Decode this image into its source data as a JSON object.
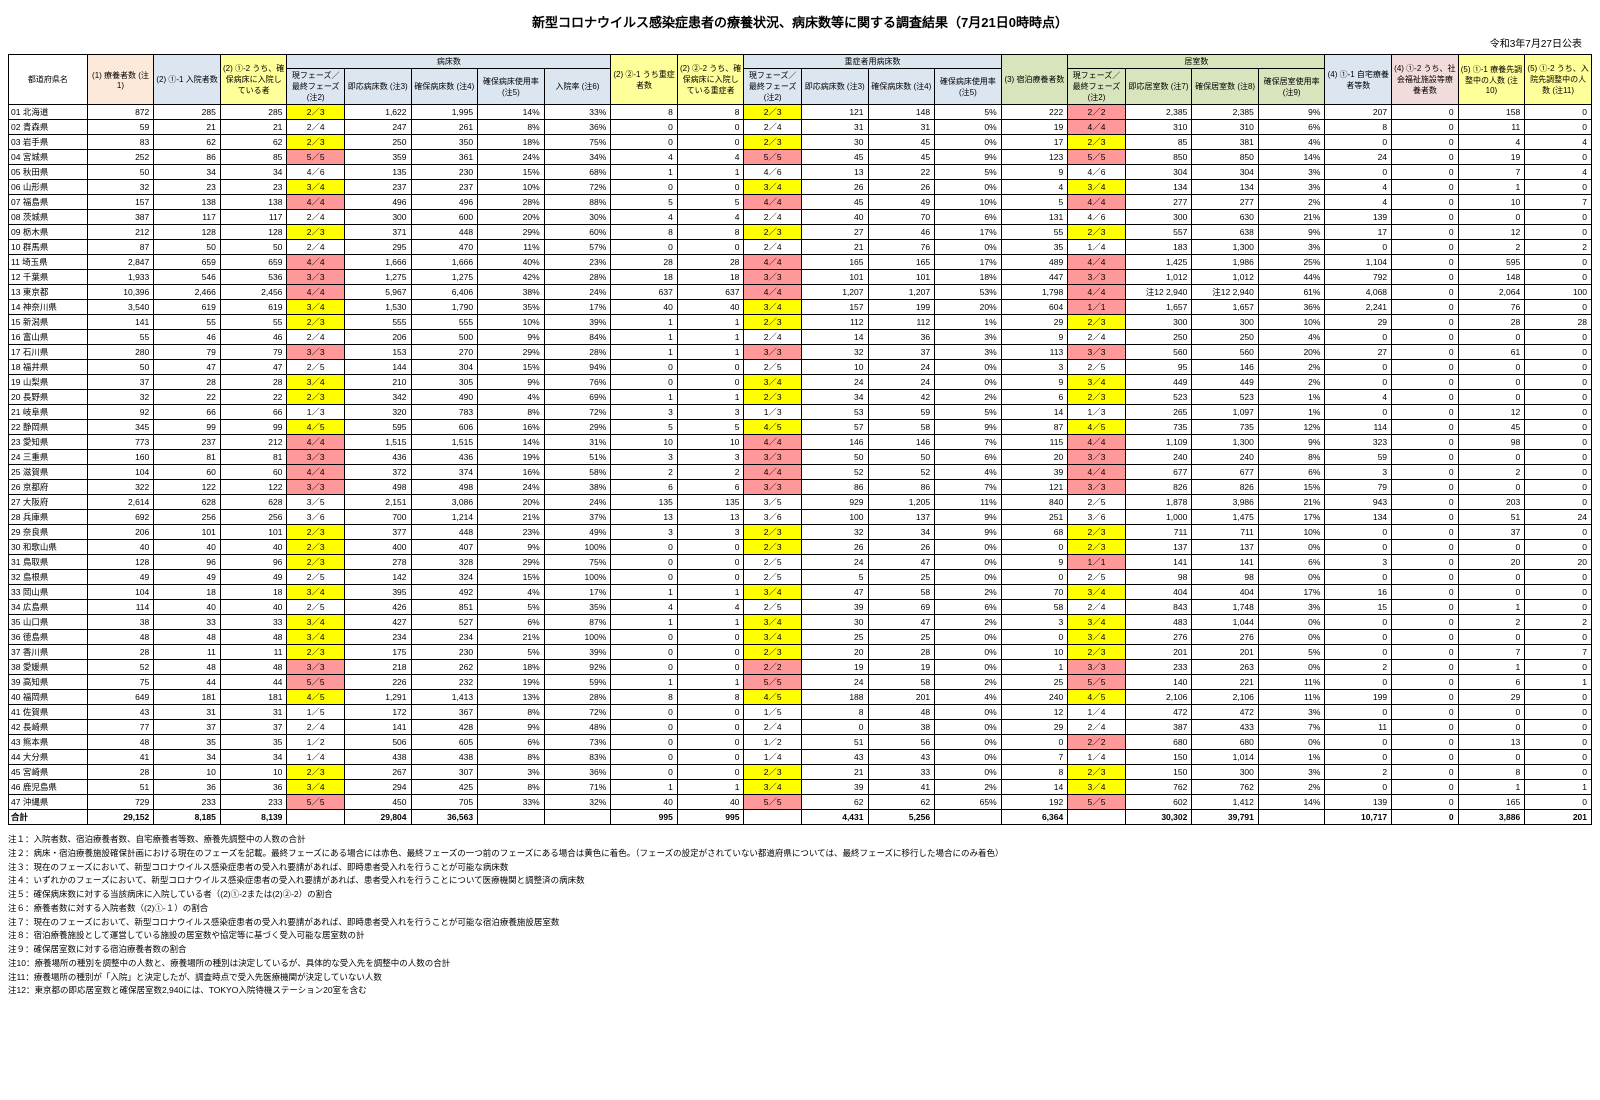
{
  "title": "新型コロナウイルス感染症患者の療養状況、病床数等に関する調査結果（7月21日0時時点）",
  "publish_date": "令和3年7月27日公表",
  "headers": {
    "pref": "都道府県名",
    "g1": "(1) 療養者数 (注1)",
    "g2_1": "(2) ①-1 入院者数",
    "g2_2": "(2) ①-2 うち、確保病床に入院している者",
    "beds_group": "病床数",
    "phase": "現フェーズ／最終フェーズ (注2)",
    "beds_imm": "即応病床数 (注3)",
    "beds_sec": "確保病床数 (注4)",
    "beds_rate": "確保病床使用率 (注5)",
    "adm_rate": "入院率 (注6)",
    "g2_2_1": "(2) ②-1 うち重症者数",
    "g2_2_2": "(2) ②-2 うち、確保病床に入院している重症者",
    "sev_group": "重症者用病床数",
    "sev_imm": "即応病床数 (注3)",
    "sev_sec": "確保病床数 (注4)",
    "sev_rate": "確保病床使用率 (注5)",
    "g3": "(3) 宿泊療養者数",
    "rooms_group": "居室数",
    "rooms_imm": "即応居室数 (注7)",
    "rooms_sec": "確保居室数 (注8)",
    "rooms_rate": "確保居室使用率 (注9)",
    "g4_1": "(4) ①-1 自宅療養者等数",
    "g4_2": "(4) ①-2 うち、社会福祉施設等療養者数",
    "g5_1": "(5) ①-1 療養先調整中の人数 (注10)",
    "g5_2": "(5) ①-2 うち、入院先調整中の人数 (注11)",
    "total": "合計"
  },
  "phase_colors": {
    "yellow": "#ffff00",
    "red": "#ff9999"
  },
  "rows": [
    [
      "01 北海道",
      "872",
      "285",
      "285",
      "2／3",
      "y",
      "1,622",
      "1,995",
      "14%",
      "33%",
      "8",
      "8",
      "2／3",
      "y",
      "121",
      "148",
      "5%",
      "222",
      "2／2",
      "r",
      "2,385",
      "2,385",
      "9%",
      "207",
      "0",
      "158",
      "0"
    ],
    [
      "02 青森県",
      "59",
      "21",
      "21",
      "2／4",
      "",
      "247",
      "261",
      "8%",
      "36%",
      "0",
      "0",
      "2／4",
      "",
      "31",
      "31",
      "0%",
      "19",
      "4／4",
      "r",
      "310",
      "310",
      "6%",
      "8",
      "0",
      "11",
      "0"
    ],
    [
      "03 岩手県",
      "83",
      "62",
      "62",
      "2／3",
      "y",
      "250",
      "350",
      "18%",
      "75%",
      "0",
      "0",
      "2／3",
      "y",
      "30",
      "45",
      "0%",
      "17",
      "2／3",
      "y",
      "85",
      "381",
      "4%",
      "0",
      "0",
      "4",
      "4"
    ],
    [
      "04 宮城県",
      "252",
      "86",
      "85",
      "5／5",
      "r",
      "359",
      "361",
      "24%",
      "34%",
      "4",
      "4",
      "5／5",
      "r",
      "45",
      "45",
      "9%",
      "123",
      "5／5",
      "r",
      "850",
      "850",
      "14%",
      "24",
      "0",
      "19",
      "0"
    ],
    [
      "05 秋田県",
      "50",
      "34",
      "34",
      "4／6",
      "",
      "135",
      "230",
      "15%",
      "68%",
      "1",
      "1",
      "4／6",
      "",
      "13",
      "22",
      "5%",
      "9",
      "4／6",
      "",
      "304",
      "304",
      "3%",
      "0",
      "0",
      "7",
      "4"
    ],
    [
      "06 山形県",
      "32",
      "23",
      "23",
      "3／4",
      "y",
      "237",
      "237",
      "10%",
      "72%",
      "0",
      "0",
      "3／4",
      "y",
      "26",
      "26",
      "0%",
      "4",
      "3／4",
      "y",
      "134",
      "134",
      "3%",
      "4",
      "0",
      "1",
      "0"
    ],
    [
      "07 福島県",
      "157",
      "138",
      "138",
      "4／4",
      "r",
      "496",
      "496",
      "28%",
      "88%",
      "5",
      "5",
      "4／4",
      "r",
      "45",
      "49",
      "10%",
      "5",
      "4／4",
      "r",
      "277",
      "277",
      "2%",
      "4",
      "0",
      "10",
      "7"
    ],
    [
      "08 茨城県",
      "387",
      "117",
      "117",
      "2／4",
      "",
      "300",
      "600",
      "20%",
      "30%",
      "4",
      "4",
      "2／4",
      "",
      "40",
      "70",
      "6%",
      "131",
      "4／6",
      "",
      "300",
      "630",
      "21%",
      "139",
      "0",
      "0",
      "0"
    ],
    [
      "09 栃木県",
      "212",
      "128",
      "128",
      "2／3",
      "y",
      "371",
      "448",
      "29%",
      "60%",
      "8",
      "8",
      "2／3",
      "y",
      "27",
      "46",
      "17%",
      "55",
      "2／3",
      "y",
      "557",
      "638",
      "9%",
      "17",
      "0",
      "12",
      "0"
    ],
    [
      "10 群馬県",
      "87",
      "50",
      "50",
      "2／4",
      "",
      "295",
      "470",
      "11%",
      "57%",
      "0",
      "0",
      "2／4",
      "",
      "21",
      "76",
      "0%",
      "35",
      "1／4",
      "",
      "183",
      "1,300",
      "3%",
      "0",
      "0",
      "2",
      "2"
    ],
    [
      "11 埼玉県",
      "2,847",
      "659",
      "659",
      "4／4",
      "r",
      "1,666",
      "1,666",
      "40%",
      "23%",
      "28",
      "28",
      "4／4",
      "r",
      "165",
      "165",
      "17%",
      "489",
      "4／4",
      "r",
      "1,425",
      "1,986",
      "25%",
      "1,104",
      "0",
      "595",
      "0"
    ],
    [
      "12 千葉県",
      "1,933",
      "546",
      "536",
      "3／3",
      "r",
      "1,275",
      "1,275",
      "42%",
      "28%",
      "18",
      "18",
      "3／3",
      "r",
      "101",
      "101",
      "18%",
      "447",
      "3／3",
      "r",
      "1,012",
      "1,012",
      "44%",
      "792",
      "0",
      "148",
      "0"
    ],
    [
      "13 東京都",
      "10,396",
      "2,466",
      "2,456",
      "4／4",
      "r",
      "5,967",
      "6,406",
      "38%",
      "24%",
      "637",
      "637",
      "4／4",
      "r",
      "1,207",
      "1,207",
      "53%",
      "1,798",
      "4／4",
      "r",
      "注12 2,940",
      "注12 2,940",
      "61%",
      "4,068",
      "0",
      "2,064",
      "100"
    ],
    [
      "14 神奈川県",
      "3,540",
      "619",
      "619",
      "3／4",
      "y",
      "1,530",
      "1,790",
      "35%",
      "17%",
      "40",
      "40",
      "3／4",
      "y",
      "157",
      "199",
      "20%",
      "604",
      "1／1",
      "r",
      "1,657",
      "1,657",
      "36%",
      "2,241",
      "0",
      "76",
      "0"
    ],
    [
      "15 新潟県",
      "141",
      "55",
      "55",
      "2／3",
      "y",
      "555",
      "555",
      "10%",
      "39%",
      "1",
      "1",
      "2／3",
      "y",
      "112",
      "112",
      "1%",
      "29",
      "2／3",
      "y",
      "300",
      "300",
      "10%",
      "29",
      "0",
      "28",
      "28"
    ],
    [
      "16 富山県",
      "55",
      "46",
      "46",
      "2／4",
      "",
      "206",
      "500",
      "9%",
      "84%",
      "1",
      "1",
      "2／4",
      "",
      "14",
      "36",
      "3%",
      "9",
      "2／4",
      "",
      "250",
      "250",
      "4%",
      "0",
      "0",
      "0",
      "0"
    ],
    [
      "17 石川県",
      "280",
      "79",
      "79",
      "3／3",
      "r",
      "153",
      "270",
      "29%",
      "28%",
      "1",
      "1",
      "3／3",
      "r",
      "32",
      "37",
      "3%",
      "113",
      "3／3",
      "r",
      "560",
      "560",
      "20%",
      "27",
      "0",
      "61",
      "0"
    ],
    [
      "18 福井県",
      "50",
      "47",
      "47",
      "2／5",
      "",
      "144",
      "304",
      "15%",
      "94%",
      "0",
      "0",
      "2／5",
      "",
      "10",
      "24",
      "0%",
      "3",
      "2／5",
      "",
      "95",
      "146",
      "2%",
      "0",
      "0",
      "0",
      "0"
    ],
    [
      "19 山梨県",
      "37",
      "28",
      "28",
      "3／4",
      "y",
      "210",
      "305",
      "9%",
      "76%",
      "0",
      "0",
      "3／4",
      "y",
      "24",
      "24",
      "0%",
      "9",
      "3／4",
      "y",
      "449",
      "449",
      "2%",
      "0",
      "0",
      "0",
      "0"
    ],
    [
      "20 長野県",
      "32",
      "22",
      "22",
      "2／3",
      "y",
      "342",
      "490",
      "4%",
      "69%",
      "1",
      "1",
      "2／3",
      "y",
      "34",
      "42",
      "2%",
      "6",
      "2／3",
      "y",
      "523",
      "523",
      "1%",
      "4",
      "0",
      "0",
      "0"
    ],
    [
      "21 岐阜県",
      "92",
      "66",
      "66",
      "1／3",
      "",
      "320",
      "783",
      "8%",
      "72%",
      "3",
      "3",
      "1／3",
      "",
      "53",
      "59",
      "5%",
      "14",
      "1／3",
      "",
      "265",
      "1,097",
      "1%",
      "0",
      "0",
      "12",
      "0"
    ],
    [
      "22 静岡県",
      "345",
      "99",
      "99",
      "4／5",
      "y",
      "595",
      "606",
      "16%",
      "29%",
      "5",
      "5",
      "4／5",
      "y",
      "57",
      "58",
      "9%",
      "87",
      "4／5",
      "y",
      "735",
      "735",
      "12%",
      "114",
      "0",
      "45",
      "0"
    ],
    [
      "23 愛知県",
      "773",
      "237",
      "212",
      "4／4",
      "r",
      "1,515",
      "1,515",
      "14%",
      "31%",
      "10",
      "10",
      "4／4",
      "r",
      "146",
      "146",
      "7%",
      "115",
      "4／4",
      "r",
      "1,109",
      "1,300",
      "9%",
      "323",
      "0",
      "98",
      "0"
    ],
    [
      "24 三重県",
      "160",
      "81",
      "81",
      "3／3",
      "r",
      "436",
      "436",
      "19%",
      "51%",
      "3",
      "3",
      "3／3",
      "r",
      "50",
      "50",
      "6%",
      "20",
      "3／3",
      "r",
      "240",
      "240",
      "8%",
      "59",
      "0",
      "0",
      "0"
    ],
    [
      "25 滋賀県",
      "104",
      "60",
      "60",
      "4／4",
      "r",
      "372",
      "374",
      "16%",
      "58%",
      "2",
      "2",
      "4／4",
      "r",
      "52",
      "52",
      "4%",
      "39",
      "4／4",
      "r",
      "677",
      "677",
      "6%",
      "3",
      "0",
      "2",
      "0"
    ],
    [
      "26 京都府",
      "322",
      "122",
      "122",
      "3／3",
      "r",
      "498",
      "498",
      "24%",
      "38%",
      "6",
      "6",
      "3／3",
      "r",
      "86",
      "86",
      "7%",
      "121",
      "3／3",
      "r",
      "826",
      "826",
      "15%",
      "79",
      "0",
      "0",
      "0"
    ],
    [
      "27 大阪府",
      "2,614",
      "628",
      "628",
      "3／5",
      "",
      "2,151",
      "3,086",
      "20%",
      "24%",
      "135",
      "135",
      "3／5",
      "",
      "929",
      "1,205",
      "11%",
      "840",
      "2／5",
      "",
      "1,878",
      "3,986",
      "21%",
      "943",
      "0",
      "203",
      "0"
    ],
    [
      "28 兵庫県",
      "692",
      "256",
      "256",
      "3／6",
      "",
      "700",
      "1,214",
      "21%",
      "37%",
      "13",
      "13",
      "3／6",
      "",
      "100",
      "137",
      "9%",
      "251",
      "3／6",
      "",
      "1,000",
      "1,475",
      "17%",
      "134",
      "0",
      "51",
      "24"
    ],
    [
      "29 奈良県",
      "206",
      "101",
      "101",
      "2／3",
      "y",
      "377",
      "448",
      "23%",
      "49%",
      "3",
      "3",
      "2／3",
      "y",
      "32",
      "34",
      "9%",
      "68",
      "2／3",
      "y",
      "711",
      "711",
      "10%",
      "0",
      "0",
      "37",
      "0"
    ],
    [
      "30 和歌山県",
      "40",
      "40",
      "40",
      "2／3",
      "y",
      "400",
      "407",
      "9%",
      "100%",
      "0",
      "0",
      "2／3",
      "y",
      "26",
      "26",
      "0%",
      "0",
      "2／3",
      "y",
      "137",
      "137",
      "0%",
      "0",
      "0",
      "0",
      "0"
    ],
    [
      "31 鳥取県",
      "128",
      "96",
      "96",
      "2／3",
      "y",
      "278",
      "328",
      "29%",
      "75%",
      "0",
      "0",
      "2／5",
      "",
      "24",
      "47",
      "0%",
      "9",
      "1／1",
      "r",
      "141",
      "141",
      "6%",
      "3",
      "0",
      "20",
      "20"
    ],
    [
      "32 島根県",
      "49",
      "49",
      "49",
      "2／5",
      "",
      "142",
      "324",
      "15%",
      "100%",
      "0",
      "0",
      "2／5",
      "",
      "5",
      "25",
      "0%",
      "0",
      "2／5",
      "",
      "98",
      "98",
      "0%",
      "0",
      "0",
      "0",
      "0"
    ],
    [
      "33 岡山県",
      "104",
      "18",
      "18",
      "3／4",
      "y",
      "395",
      "492",
      "4%",
      "17%",
      "1",
      "1",
      "3／4",
      "y",
      "47",
      "58",
      "2%",
      "70",
      "3／4",
      "y",
      "404",
      "404",
      "17%",
      "16",
      "0",
      "0",
      "0"
    ],
    [
      "34 広島県",
      "114",
      "40",
      "40",
      "2／5",
      "",
      "426",
      "851",
      "5%",
      "35%",
      "4",
      "4",
      "2／5",
      "",
      "39",
      "69",
      "6%",
      "58",
      "2／4",
      "",
      "843",
      "1,748",
      "3%",
      "15",
      "0",
      "1",
      "0"
    ],
    [
      "35 山口県",
      "38",
      "33",
      "33",
      "3／4",
      "y",
      "427",
      "527",
      "6%",
      "87%",
      "1",
      "1",
      "3／4",
      "y",
      "30",
      "47",
      "2%",
      "3",
      "3／4",
      "y",
      "483",
      "1,044",
      "0%",
      "0",
      "0",
      "2",
      "2"
    ],
    [
      "36 徳島県",
      "48",
      "48",
      "48",
      "3／4",
      "y",
      "234",
      "234",
      "21%",
      "100%",
      "0",
      "0",
      "3／4",
      "y",
      "25",
      "25",
      "0%",
      "0",
      "3／4",
      "y",
      "276",
      "276",
      "0%",
      "0",
      "0",
      "0",
      "0"
    ],
    [
      "37 香川県",
      "28",
      "11",
      "11",
      "2／3",
      "y",
      "175",
      "230",
      "5%",
      "39%",
      "0",
      "0",
      "2／3",
      "y",
      "20",
      "28",
      "0%",
      "10",
      "2／3",
      "y",
      "201",
      "201",
      "5%",
      "0",
      "0",
      "7",
      "7"
    ],
    [
      "38 愛媛県",
      "52",
      "48",
      "48",
      "3／3",
      "r",
      "218",
      "262",
      "18%",
      "92%",
      "0",
      "0",
      "2／2",
      "r",
      "19",
      "19",
      "0%",
      "1",
      "3／3",
      "r",
      "233",
      "263",
      "0%",
      "2",
      "0",
      "1",
      "0"
    ],
    [
      "39 高知県",
      "75",
      "44",
      "44",
      "5／5",
      "r",
      "226",
      "232",
      "19%",
      "59%",
      "1",
      "1",
      "5／5",
      "r",
      "24",
      "58",
      "2%",
      "25",
      "5／5",
      "r",
      "140",
      "221",
      "11%",
      "0",
      "0",
      "6",
      "1"
    ],
    [
      "40 福岡県",
      "649",
      "181",
      "181",
      "4／5",
      "y",
      "1,291",
      "1,413",
      "13%",
      "28%",
      "8",
      "8",
      "4／5",
      "y",
      "188",
      "201",
      "4%",
      "240",
      "4／5",
      "y",
      "2,106",
      "2,106",
      "11%",
      "199",
      "0",
      "29",
      "0"
    ],
    [
      "41 佐賀県",
      "43",
      "31",
      "31",
      "1／5",
      "",
      "172",
      "367",
      "8%",
      "72%",
      "0",
      "0",
      "1／5",
      "",
      "8",
      "48",
      "0%",
      "12",
      "1／4",
      "",
      "472",
      "472",
      "3%",
      "0",
      "0",
      "0",
      "0"
    ],
    [
      "42 長崎県",
      "77",
      "37",
      "37",
      "2／4",
      "",
      "141",
      "428",
      "9%",
      "48%",
      "0",
      "0",
      "2／4",
      "",
      "0",
      "38",
      "0%",
      "29",
      "2／4",
      "",
      "387",
      "433",
      "7%",
      "11",
      "0",
      "0",
      "0"
    ],
    [
      "43 熊本県",
      "48",
      "35",
      "35",
      "1／2",
      "",
      "506",
      "605",
      "6%",
      "73%",
      "0",
      "0",
      "1／2",
      "",
      "51",
      "56",
      "0%",
      "0",
      "2／2",
      "r",
      "680",
      "680",
      "0%",
      "0",
      "0",
      "13",
      "0"
    ],
    [
      "44 大分県",
      "41",
      "34",
      "34",
      "1／4",
      "",
      "438",
      "438",
      "8%",
      "83%",
      "0",
      "0",
      "1／4",
      "",
      "43",
      "43",
      "0%",
      "7",
      "1／4",
      "",
      "150",
      "1,014",
      "1%",
      "0",
      "0",
      "0",
      "0"
    ],
    [
      "45 宮崎県",
      "28",
      "10",
      "10",
      "2／3",
      "y",
      "267",
      "307",
      "3%",
      "36%",
      "0",
      "0",
      "2／3",
      "y",
      "21",
      "33",
      "0%",
      "8",
      "2／3",
      "y",
      "150",
      "300",
      "3%",
      "2",
      "0",
      "8",
      "0"
    ],
    [
      "46 鹿児島県",
      "51",
      "36",
      "36",
      "3／4",
      "y",
      "294",
      "425",
      "8%",
      "71%",
      "1",
      "1",
      "3／4",
      "y",
      "39",
      "41",
      "2%",
      "14",
      "3／4",
      "y",
      "762",
      "762",
      "2%",
      "0",
      "0",
      "1",
      "1"
    ],
    [
      "47 沖縄県",
      "729",
      "233",
      "233",
      "5／5",
      "r",
      "450",
      "705",
      "33%",
      "32%",
      "40",
      "40",
      "5／5",
      "r",
      "62",
      "62",
      "65%",
      "192",
      "5／5",
      "r",
      "602",
      "1,412",
      "14%",
      "139",
      "0",
      "165",
      "0"
    ]
  ],
  "total": [
    "29,152",
    "8,185",
    "8,139",
    "",
    "",
    "29,804",
    "36,563",
    "",
    "",
    "995",
    "995",
    "",
    "",
    "4,431",
    "5,256",
    "",
    "6,364",
    "",
    "",
    "30,302",
    "39,791",
    "",
    "10,717",
    "0",
    "3,886",
    "201"
  ],
  "notes": [
    "注１：入院者数、宿泊療養者数、自宅療養者等数、療養先調整中の人数の合計",
    "注２：病床・宿泊療養施設確保計画における現在のフェーズを記載。最終フェーズにある場合には赤色、最終フェーズの一つ前のフェーズにある場合は黄色に着色。（フェーズの設定がされていない都道府県については、最終フェーズに移行した場合にのみ着色）",
    "注３：現在のフェーズにおいて、新型コロナウイルス感染症患者の受入れ要請があれば、即時患者受入れを行うことが可能な病床数",
    "注４：いずれかのフェーズにおいて、新型コロナウイルス感染症患者の受入れ要請があれば、患者受入れを行うことについて医療機関と調整済の病床数",
    "注５：確保病床数に対する当該病床に入院している者（(2)①-2または(2)②-2）の割合",
    "注６：療養者数に対する入院者数（(2)①-１）の割合",
    "注７：現在のフェーズにおいて、新型コロナウイルス感染症患者の受入れ要請があれば、即時患者受入れを行うことが可能な宿泊療養施設居室数",
    "注８：宿泊療養施設として運営している施設の居室数や協定等に基づく受入可能な居室数の計",
    "注９：確保居室数に対する宿泊療養者数の割合",
    "注10：療養場所の種別を調整中の人数と、療養場所の種別は決定しているが、具体的な受入先を調整中の人数の合計",
    "注11：療養場所の種別が「入院」と決定したが、調査時点で受入先医療機関が決定していない人数",
    "注12：東京都の即応居室数と確保居室数2,940には、TOKYO入院待機ステーション20室を含む"
  ]
}
